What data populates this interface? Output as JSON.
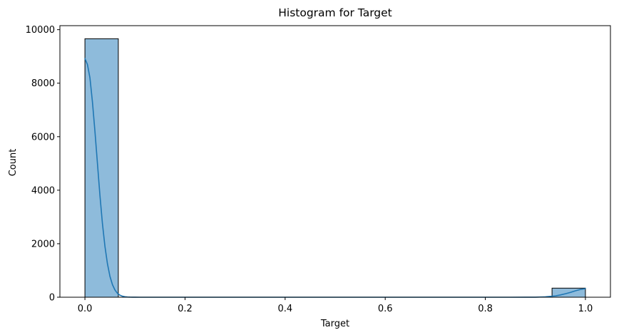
{
  "chart_data": {
    "type": "bar",
    "title": "Histogram for Target",
    "xlabel": "Target",
    "ylabel": "Count",
    "xlim": [
      -0.05,
      1.05
    ],
    "ylim": [
      0,
      10150
    ],
    "x_ticks": [
      0.0,
      0.2,
      0.4,
      0.6,
      0.8,
      1.0
    ],
    "x_tick_labels": [
      "0.0",
      "0.2",
      "0.4",
      "0.6",
      "0.8",
      "1.0"
    ],
    "y_ticks": [
      0,
      2000,
      4000,
      6000,
      8000,
      10000
    ],
    "y_tick_labels": [
      "0",
      "2000",
      "4000",
      "6000",
      "8000",
      "10000"
    ],
    "bin_width": 0.0667,
    "bins": [
      {
        "x0": 0.0,
        "x1": 0.0667,
        "count": 9661
      },
      {
        "x0": 0.9333,
        "x1": 1.0,
        "count": 339
      }
    ],
    "kde_line": {
      "x": [
        0.0,
        0.005,
        0.01,
        0.015,
        0.02,
        0.025,
        0.03,
        0.035,
        0.04,
        0.045,
        0.05,
        0.055,
        0.06,
        0.065,
        0.07,
        0.075,
        0.08,
        0.085,
        0.09,
        0.095,
        0.1,
        0.11,
        0.12,
        0.13,
        0.15,
        0.2,
        0.3,
        0.4,
        0.5,
        0.6,
        0.7,
        0.8,
        0.85,
        0.88,
        0.9,
        0.92,
        0.94,
        0.95,
        0.96,
        0.97,
        0.98,
        0.99,
        1.0
      ],
      "y": [
        8920,
        8700,
        8200,
        7300,
        6200,
        5000,
        3800,
        2750,
        1900,
        1250,
        780,
        470,
        270,
        145,
        75,
        38,
        18,
        8,
        4,
        2,
        1,
        0,
        0,
        0,
        0,
        0,
        0,
        0,
        0,
        0,
        0,
        0,
        0,
        1,
        3,
        15,
        50,
        85,
        130,
        180,
        240,
        290,
        320
      ]
    },
    "grid": false,
    "legend": "none",
    "bar_fill": "#8ebbdb",
    "bar_edge": "#000000",
    "line_color": "#1f77b4"
  }
}
